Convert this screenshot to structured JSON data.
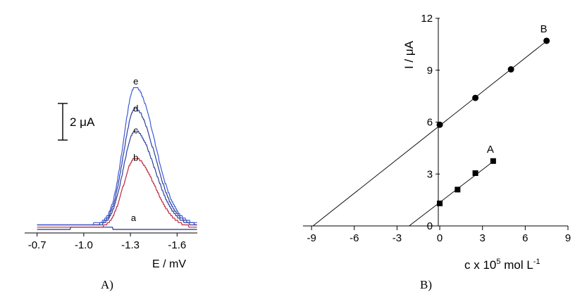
{
  "chart_data": [
    {
      "panel_label": "A)",
      "type": "line",
      "xlabel": "E / mV",
      "xlim": [
        -0.62,
        -1.73
      ],
      "x_ticks": [
        "-0.7",
        "-1.0",
        "-1.3",
        "-1.6"
      ],
      "x_tick_values": [
        -0.7,
        -1.0,
        -1.3,
        -1.6
      ],
      "scale_bar_label": "2 μA",
      "scale_bar_ua": 2,
      "curve_peak_x": -1.33,
      "series": [
        {
          "name": "a",
          "color": "#1e2f8a",
          "peak_ua": 0.0,
          "baseline_ua": 0.0
        },
        {
          "name": "b",
          "color": "#c0283a",
          "peak_ua": 3.9,
          "baseline_ua": 0.1
        },
        {
          "name": "c",
          "color": "#2b3fa0",
          "peak_ua": 5.4,
          "baseline_ua": 0.2
        },
        {
          "name": "d",
          "color": "#2b3fa0",
          "peak_ua": 6.6,
          "baseline_ua": 0.25
        },
        {
          "name": "e",
          "color": "#3d5bd6",
          "peak_ua": 7.8,
          "baseline_ua": 0.3
        }
      ]
    },
    {
      "panel_label": "B)",
      "type": "scatter",
      "xlabel_main": "c x 10",
      "xlabel_exp": "5",
      "xlabel_unit": " mol L",
      "xlabel_unit_exp": "-1",
      "ylabel": "I / μA",
      "xlim": [
        -9.6,
        9
      ],
      "ylim": [
        0,
        12
      ],
      "x_ticks": [
        "-9",
        "-6",
        "-3",
        "0",
        "3",
        "6",
        "9"
      ],
      "x_tick_values": [
        -9,
        -6,
        -3,
        0,
        3,
        6,
        9
      ],
      "y_ticks": [
        "0",
        "3",
        "6",
        "9",
        "12"
      ],
      "y_tick_values": [
        0,
        3,
        6,
        9,
        12
      ],
      "series": [
        {
          "name": "A",
          "marker": "square",
          "x": [
            0,
            1.25,
            2.5,
            3.75
          ],
          "y": [
            1.3,
            2.1,
            3.05,
            3.75
          ],
          "fit_line": {
            "x": [
              -2.15,
              3.9
            ],
            "y": [
              0,
              3.82
            ]
          }
        },
        {
          "name": "B",
          "marker": "circle",
          "x": [
            0,
            2.5,
            5.0,
            7.5
          ],
          "y": [
            5.85,
            7.4,
            9.05,
            10.7
          ],
          "fit_line": {
            "x": [
              -8.9,
              7.6
            ],
            "y": [
              0,
              10.75
            ]
          }
        }
      ]
    }
  ]
}
